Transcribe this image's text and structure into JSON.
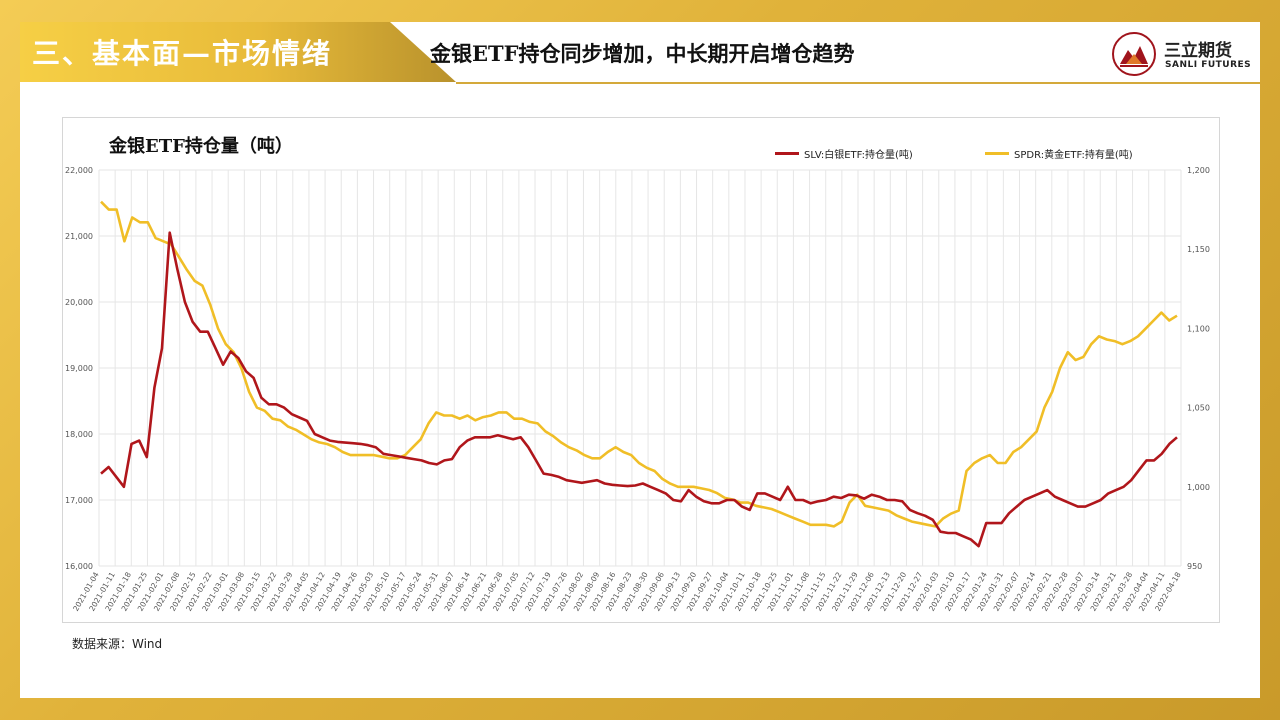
{
  "header": {
    "section_title": "三、基本面—市场情绪",
    "headline": "金银ETF持仓同步增加，中长期开启增仓趋势",
    "logo_cn": "三立期货",
    "logo_en": "SANLI FUTURES"
  },
  "source": "数据来源：Wind",
  "colors": {
    "slv": "#b0161b",
    "spdr": "#f0be27",
    "grid": "#e6e6e6"
  },
  "chart_data": {
    "type": "line",
    "title": "金银ETF持仓量（吨）",
    "xlabel": "",
    "ylabel": "",
    "ylim": [
      16000,
      22000
    ],
    "y2lim": [
      950,
      1200
    ],
    "y_ticks": [
      "16,000",
      "17,000",
      "18,000",
      "19,000",
      "20,000",
      "21,000",
      "22,000"
    ],
    "y2_ticks": [
      "950",
      "1,000",
      "1,050",
      "1,100",
      "1,150",
      "1,200"
    ],
    "x_ticks": [
      "2021-01-04",
      "2021-01-11",
      "2021-01-18",
      "2021-01-25",
      "2021-02-01",
      "2021-02-08",
      "2021-02-15",
      "2021-02-22",
      "2021-03-01",
      "2021-03-08",
      "2021-03-15",
      "2021-03-22",
      "2021-03-29",
      "2021-04-05",
      "2021-04-12",
      "2021-04-19",
      "2021-04-26",
      "2021-05-03",
      "2021-05-10",
      "2021-05-17",
      "2021-05-24",
      "2021-05-31",
      "2021-06-07",
      "2021-06-14",
      "2021-06-21",
      "2021-06-28",
      "2021-07-05",
      "2021-07-12",
      "2021-07-19",
      "2021-07-26",
      "2021-08-02",
      "2021-08-09",
      "2021-08-16",
      "2021-08-23",
      "2021-08-30",
      "2021-09-06",
      "2021-09-13",
      "2021-09-20",
      "2021-09-27",
      "2021-10-04",
      "2021-10-11",
      "2021-10-18",
      "2021-10-25",
      "2021-11-01",
      "2021-11-08",
      "2021-11-15",
      "2021-11-22",
      "2021-11-29",
      "2021-12-06",
      "2021-12-13",
      "2021-12-20",
      "2021-12-27",
      "2022-01-03",
      "2022-01-10",
      "2022-01-17",
      "2022-01-24",
      "2022-01-31",
      "2022-02-07",
      "2022-02-14",
      "2022-02-21",
      "2022-02-28",
      "2022-03-07",
      "2022-03-14",
      "2022-03-21",
      "2022-03-28",
      "2022-04-04",
      "2022-04-11",
      "2022-04-18"
    ],
    "series": [
      {
        "name": "SLV:白银ETF:持仓量(吨)",
        "axis": "left",
        "values": [
          17400,
          17500,
          17350,
          17200,
          17850,
          17900,
          17650,
          18700,
          19300,
          21050,
          20500,
          20000,
          19700,
          19550,
          19550,
          19300,
          19050,
          19250,
          19150,
          18950,
          18850,
          18550,
          18450,
          18450,
          18400,
          18300,
          18250,
          18200,
          18000,
          17950,
          17900,
          17880,
          17870,
          17860,
          17850,
          17830,
          17800,
          17700,
          17680,
          17660,
          17640,
          17620,
          17600,
          17560,
          17540,
          17600,
          17620,
          17800,
          17900,
          17950,
          17950,
          17950,
          17980,
          17950,
          17920,
          17950,
          17800,
          17600,
          17400,
          17380,
          17350,
          17300,
          17280,
          17260,
          17280,
          17300,
          17250,
          17230,
          17220,
          17210,
          17220,
          17250,
          17200,
          17150,
          17100,
          17000,
          16980,
          17150,
          17050,
          16980,
          16950,
          16950,
          17000,
          17000,
          16900,
          16850,
          17100,
          17100,
          17050,
          17000,
          17200,
          17000,
          17000,
          16950,
          16980,
          17000,
          17050,
          17030,
          17080,
          17070,
          17020,
          17080,
          17050,
          17000,
          17000,
          16980,
          16850,
          16800,
          16760,
          16700,
          16520,
          16500,
          16500,
          16450,
          16400,
          16300,
          16650,
          16650,
          16650,
          16800,
          16900,
          17000,
          17050,
          17100,
          17150,
          17050,
          17000,
          16950,
          16900,
          16900,
          16950,
          17000,
          17100,
          17150,
          17200,
          17300,
          17450,
          17600,
          17600,
          17700,
          17850,
          17950
        ]
      },
      {
        "name": "SPDR:黄金ETF:持有量(吨)",
        "axis": "right",
        "values": [
          1180,
          1175,
          1175,
          1155,
          1170,
          1167,
          1167,
          1157,
          1155,
          1153,
          1145,
          1137,
          1130,
          1127,
          1115,
          1100,
          1090,
          1085,
          1075,
          1060,
          1050,
          1048,
          1043,
          1042,
          1038,
          1036,
          1033,
          1030,
          1028,
          1027,
          1025,
          1022,
          1020,
          1020,
          1020,
          1020,
          1019,
          1018,
          1018,
          1020,
          1025,
          1030,
          1040,
          1047,
          1045,
          1045,
          1043,
          1045,
          1042,
          1044,
          1045,
          1047,
          1047,
          1043,
          1043,
          1041,
          1040,
          1035,
          1032,
          1028,
          1025,
          1023,
          1020,
          1018,
          1018,
          1022,
          1025,
          1022,
          1020,
          1015,
          1012,
          1010,
          1005,
          1002,
          1000,
          1000,
          1000,
          999,
          998,
          996,
          993,
          992,
          990,
          990,
          988,
          987,
          986,
          984,
          982,
          980,
          978,
          976,
          976,
          976,
          975,
          978,
          990,
          995,
          988,
          987,
          986,
          985,
          982,
          980,
          978,
          977,
          976,
          975,
          980,
          983,
          985,
          1010,
          1015,
          1018,
          1020,
          1015,
          1015,
          1022,
          1025,
          1030,
          1035,
          1050,
          1060,
          1075,
          1085,
          1080,
          1082,
          1090,
          1095,
          1093,
          1092,
          1090,
          1092,
          1095,
          1100,
          1105,
          1110,
          1105,
          1108
        ]
      }
    ],
    "legend": "top-right"
  }
}
